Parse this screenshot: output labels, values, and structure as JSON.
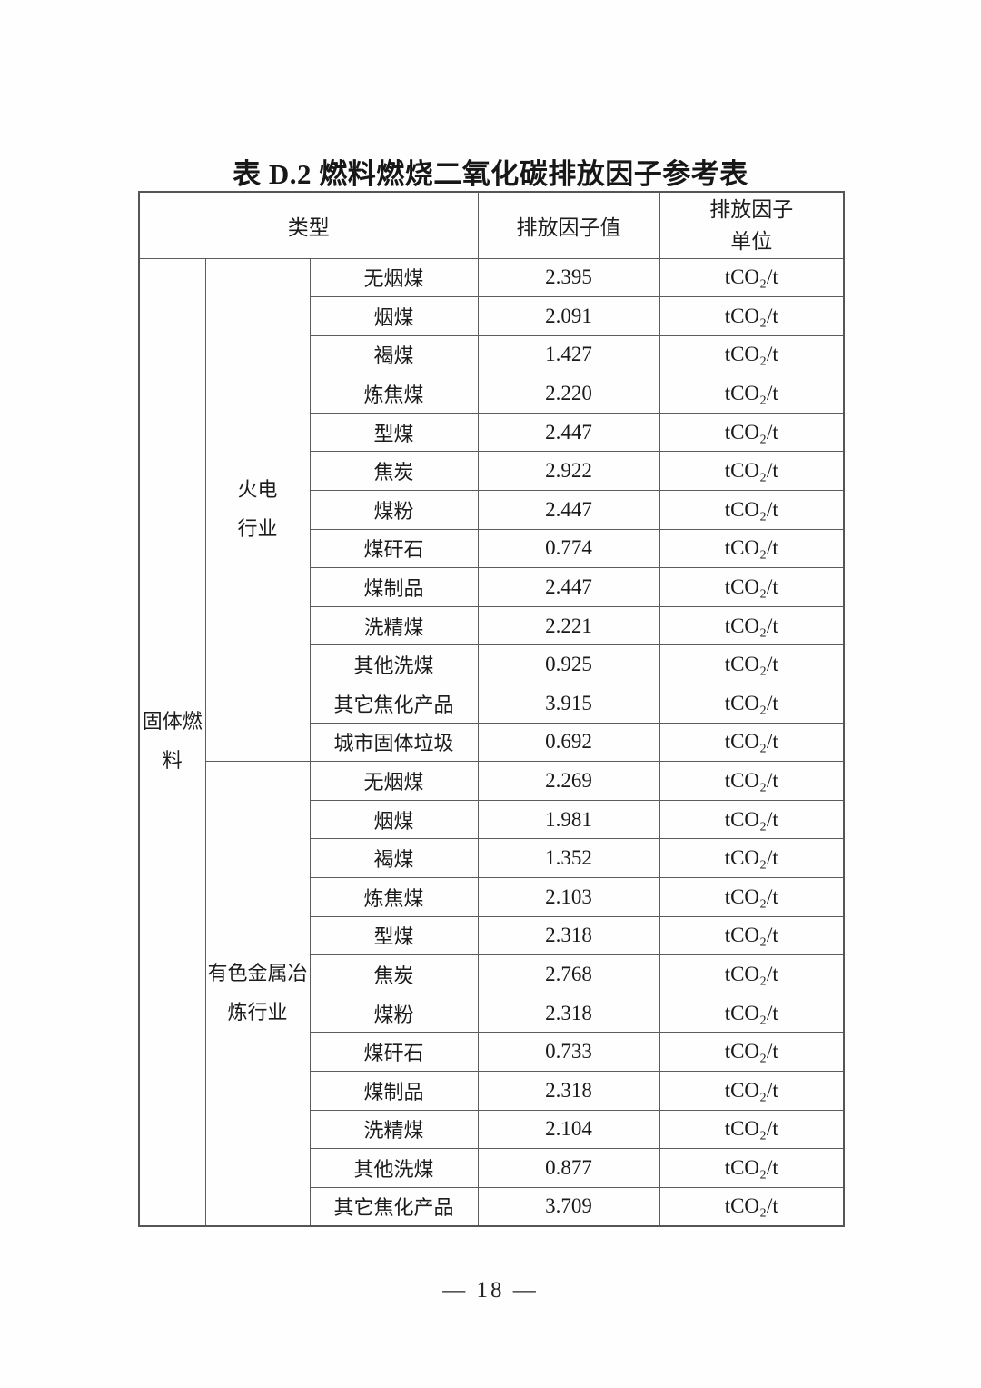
{
  "page": {
    "title": "表 D.2 燃料燃烧二氧化碳排放因子参考表",
    "footer_page_number": "— 18 —"
  },
  "table": {
    "headers": {
      "type": "类型",
      "factor_value": "排放因子值",
      "factor_unit": "排放因子\n单位"
    },
    "fuel_category": "固体燃\n料",
    "groups": [
      {
        "industry": "火电\n行业",
        "rows": [
          {
            "fuel": "无烟煤",
            "value": "2.395",
            "unit": "tCO₂/t"
          },
          {
            "fuel": "烟煤",
            "value": "2.091",
            "unit": "tCO₂/t"
          },
          {
            "fuel": "褐煤",
            "value": "1.427",
            "unit": "tCO₂/t"
          },
          {
            "fuel": "炼焦煤",
            "value": "2.220",
            "unit": "tCO₂/t"
          },
          {
            "fuel": "型煤",
            "value": "2.447",
            "unit": "tCO₂/t"
          },
          {
            "fuel": "焦炭",
            "value": "2.922",
            "unit": "tCO₂/t"
          },
          {
            "fuel": "煤粉",
            "value": "2.447",
            "unit": "tCO₂/t"
          },
          {
            "fuel": "煤矸石",
            "value": "0.774",
            "unit": "tCO₂/t"
          },
          {
            "fuel": "煤制品",
            "value": "2.447",
            "unit": "tCO₂/t"
          },
          {
            "fuel": "洗精煤",
            "value": "2.221",
            "unit": "tCO₂/t"
          },
          {
            "fuel": "其他洗煤",
            "value": "0.925",
            "unit": "tCO₂/t"
          },
          {
            "fuel": "其它焦化产品",
            "value": "3.915",
            "unit": "tCO₂/t"
          },
          {
            "fuel": "城市固体垃圾",
            "value": "0.692",
            "unit": "tCO₂/t"
          }
        ]
      },
      {
        "industry": "有色金属冶\n炼行业",
        "rows": [
          {
            "fuel": "无烟煤",
            "value": "2.269",
            "unit": "tCO₂/t"
          },
          {
            "fuel": "烟煤",
            "value": "1.981",
            "unit": "tCO₂/t"
          },
          {
            "fuel": "褐煤",
            "value": "1.352",
            "unit": "tCO₂/t"
          },
          {
            "fuel": "炼焦煤",
            "value": "2.103",
            "unit": "tCO₂/t"
          },
          {
            "fuel": "型煤",
            "value": "2.318",
            "unit": "tCO₂/t"
          },
          {
            "fuel": "焦炭",
            "value": "2.768",
            "unit": "tCO₂/t"
          },
          {
            "fuel": "煤粉",
            "value": "2.318",
            "unit": "tCO₂/t"
          },
          {
            "fuel": "煤矸石",
            "value": "0.733",
            "unit": "tCO₂/t"
          },
          {
            "fuel": "煤制品",
            "value": "2.318",
            "unit": "tCO₂/t"
          },
          {
            "fuel": "洗精煤",
            "value": "2.104",
            "unit": "tCO₂/t"
          },
          {
            "fuel": "其他洗煤",
            "value": "0.877",
            "unit": "tCO₂/t"
          },
          {
            "fuel": "其它焦化产品",
            "value": "3.709",
            "unit": "tCO₂/t"
          }
        ]
      }
    ]
  }
}
